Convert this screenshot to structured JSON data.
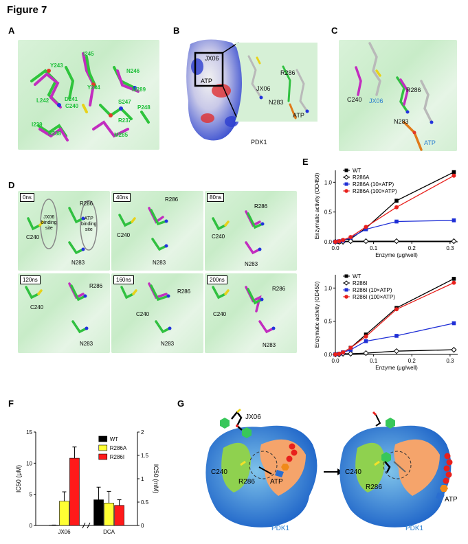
{
  "figure_title": "Figure 7",
  "panels": {
    "A": {
      "label": "A",
      "residues": [
        "I245",
        "Y243",
        "N246",
        "Y244",
        "M289",
        "L242",
        "D241",
        "S247",
        "C240",
        "P248",
        "I239",
        "R237",
        "R238",
        "M285"
      ]
    },
    "B": {
      "label": "B",
      "inset_labels": [
        "JX06",
        "ATP"
      ],
      "labels": [
        "R286",
        "JX06",
        "N283",
        "ATP",
        "PDK1"
      ]
    },
    "C": {
      "label": "C",
      "labels": [
        "R286",
        "C240",
        "JX06",
        "N283",
        "ATP"
      ]
    },
    "D": {
      "label": "D",
      "frames": [
        {
          "time": "0ns",
          "labels": [
            "R286",
            "C240",
            "N283"
          ]
        },
        {
          "time": "40ns",
          "labels": [
            "R286",
            "C240",
            "N283"
          ]
        },
        {
          "time": "80ns",
          "labels": [
            "R286",
            "C240",
            "N283"
          ]
        },
        {
          "time": "120ns",
          "labels": [
            "R286",
            "C240",
            "N283"
          ]
        },
        {
          "time": "160ns",
          "labels": [
            "R286",
            "C240",
            "N283"
          ]
        },
        {
          "time": "200ns",
          "labels": [
            "R286",
            "C240",
            "N283"
          ]
        }
      ],
      "ellipse_labels": [
        "JX06\nbinding\nsite",
        "ATP\nbinding\nsite"
      ]
    },
    "E": {
      "label": "E"
    },
    "F": {
      "label": "F"
    },
    "G": {
      "label": "G",
      "left": {
        "ligand": "JX06",
        "c240": "C240",
        "r286": "R286",
        "atp": "ATP",
        "protein": "PDK1"
      },
      "right": {
        "c240": "C240",
        "r286": "R286",
        "atp": "ATP",
        "protein": "PDK1"
      }
    }
  },
  "chart_data": [
    {
      "id": "E-top",
      "type": "line",
      "xlabel": "Enzyme (μg/well)",
      "ylabel": "Enzymatic activity (OD450)",
      "xlim": [
        0,
        0.32
      ],
      "ylim": [
        0,
        1.2
      ],
      "xticks": [
        "0.0",
        "0.1",
        "0.2",
        "0.3"
      ],
      "yticks": [
        "0.0",
        "0.5",
        "1.0"
      ],
      "x": [
        0,
        0.01,
        0.02,
        0.04,
        0.08,
        0.16,
        0.31
      ],
      "series": [
        {
          "name": "WT",
          "color": "#000000",
          "marker": "square",
          "values": [
            0.0,
            0.0,
            0.02,
            0.05,
            0.23,
            0.69,
            1.17
          ]
        },
        {
          "name": "R286A",
          "color": "#000000",
          "marker": "diamond-open",
          "values": [
            0.0,
            0.0,
            0.0,
            0.01,
            0.01,
            0.01,
            0.01
          ]
        },
        {
          "name": "R286A (10×ATP)",
          "color": "#1f2fd6",
          "marker": "square",
          "values": [
            0.0,
            0.01,
            0.02,
            0.07,
            0.21,
            0.34,
            0.36
          ]
        },
        {
          "name": "R286A (100×ATP)",
          "color": "#e8201c",
          "marker": "circle",
          "values": [
            0.0,
            0.01,
            0.03,
            0.08,
            0.25,
            0.58,
            1.11
          ]
        }
      ]
    },
    {
      "id": "E-bottom",
      "type": "line",
      "xlabel": "Enzyme (μg/well)",
      "ylabel": "Enzymatic activity (OD450)",
      "xlim": [
        0,
        0.32
      ],
      "ylim": [
        0,
        1.2
      ],
      "xticks": [
        "0.0",
        "0.1",
        "0.2",
        "0.3"
      ],
      "yticks": [
        "0.0",
        "0.5",
        "1.0"
      ],
      "x": [
        0,
        0.01,
        0.02,
        0.04,
        0.08,
        0.16,
        0.31
      ],
      "series": [
        {
          "name": "WT",
          "color": "#000000",
          "marker": "square",
          "values": [
            0.0,
            0.01,
            0.03,
            0.1,
            0.3,
            0.7,
            1.14
          ]
        },
        {
          "name": "R286I",
          "color": "#000000",
          "marker": "diamond-open",
          "values": [
            0.0,
            0.0,
            0.01,
            0.01,
            0.02,
            0.05,
            0.07
          ]
        },
        {
          "name": "R286I (10×ATP)",
          "color": "#1f2fd6",
          "marker": "square",
          "values": [
            0.0,
            0.01,
            0.03,
            0.07,
            0.2,
            0.28,
            0.47
          ]
        },
        {
          "name": "R286I (100×ATP)",
          "color": "#e8201c",
          "marker": "circle",
          "values": [
            0.0,
            0.01,
            0.03,
            0.1,
            0.27,
            0.68,
            1.08
          ]
        }
      ]
    },
    {
      "id": "F",
      "type": "bar",
      "categories": [
        "JX06",
        "DCA"
      ],
      "ylabel_left": "IC50 (μM)",
      "ylabel_right": "IC50 (mM)",
      "ylim_left": [
        0,
        15
      ],
      "ylim_right": [
        0,
        2
      ],
      "yticks_left": [
        "0",
        "5",
        "10",
        "15"
      ],
      "yticks_right": [
        "0",
        "0.5",
        "1",
        "1.5",
        "2"
      ],
      "series": [
        {
          "name": "WT",
          "color": "#000000",
          "values": [
            0.05,
            0.55
          ],
          "errors": [
            0.02,
            0.27
          ]
        },
        {
          "name": "R286A",
          "color": "#ffff33",
          "values": [
            3.9,
            0.48
          ],
          "errors": [
            1.5,
            0.25
          ]
        },
        {
          "name": "R286I",
          "color": "#ff1a1a",
          "values": [
            10.8,
            0.43
          ],
          "errors": [
            1.8,
            0.12
          ]
        }
      ]
    }
  ]
}
